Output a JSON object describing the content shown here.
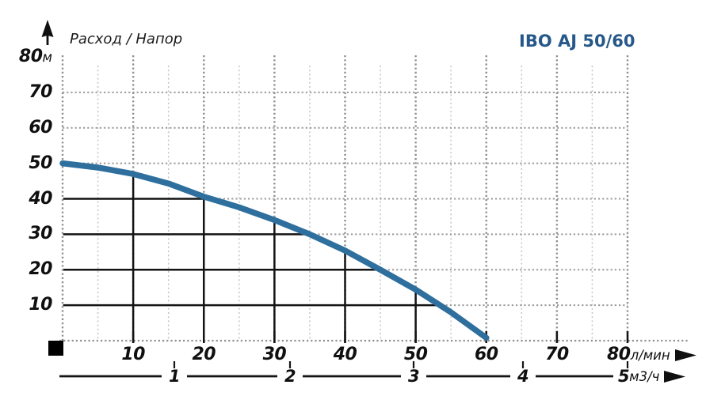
{
  "header": {
    "axis_title": "Расход / Напор",
    "chart_title": "IBO AJ 50/60",
    "title_color": "#27588a"
  },
  "chart_data": {
    "type": "line",
    "title": "IBO AJ 50/60",
    "ylabel": "Расход / Напор",
    "y_unit": "м",
    "x_unit_primary": "л/мин",
    "x_unit_secondary": "м3/ч",
    "ylim": [
      0,
      80
    ],
    "xlim_lmin": [
      0,
      80
    ],
    "grid": true,
    "y_ticks": [
      80,
      70,
      60,
      50,
      40,
      30,
      20,
      10
    ],
    "x_ticks_lmin": [
      10,
      20,
      30,
      40,
      50,
      60,
      70,
      80
    ],
    "x_ticks_m3h": [
      1,
      2,
      3,
      4,
      5
    ],
    "series": [
      {
        "name": "IBO AJ 50/60",
        "color": "#2e6f9e",
        "points": [
          {
            "flow_lmin": 0,
            "head_m": 50
          },
          {
            "flow_lmin": 5,
            "head_m": 48.8
          },
          {
            "flow_lmin": 10,
            "head_m": 47
          },
          {
            "flow_lmin": 15,
            "head_m": 44.3
          },
          {
            "flow_lmin": 20,
            "head_m": 40.6
          },
          {
            "flow_lmin": 25,
            "head_m": 37.6
          },
          {
            "flow_lmin": 30,
            "head_m": 34
          },
          {
            "flow_lmin": 35,
            "head_m": 30
          },
          {
            "flow_lmin": 40,
            "head_m": 25.4
          },
          {
            "flow_lmin": 45,
            "head_m": 20
          },
          {
            "flow_lmin": 50,
            "head_m": 14.4
          },
          {
            "flow_lmin": 55,
            "head_m": 8
          },
          {
            "flow_lmin": 60,
            "head_m": 0.8
          }
        ]
      }
    ]
  }
}
